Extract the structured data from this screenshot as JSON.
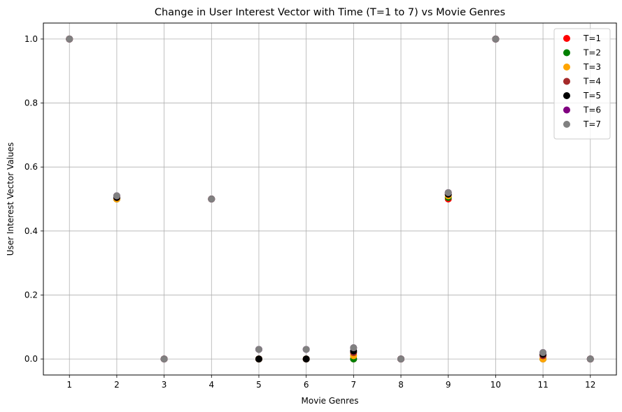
{
  "chart_data": {
    "type": "scatter",
    "title": "Change in User Interest Vector with Time (T=1 to 7) vs Movie Genres",
    "xlabel": "Movie Genres",
    "ylabel": "User Interest Vector Values",
    "x": [
      1,
      2,
      3,
      4,
      5,
      6,
      7,
      8,
      9,
      10,
      11,
      12
    ],
    "xlim": [
      0.45,
      12.55
    ],
    "ylim": [
      -0.05,
      1.05
    ],
    "x_ticks": [
      "1",
      "2",
      "3",
      "4",
      "5",
      "6",
      "7",
      "8",
      "9",
      "10",
      "11",
      "12"
    ],
    "y_ticks": [
      "0.0",
      "0.2",
      "0.4",
      "0.6",
      "0.8",
      "1.0"
    ],
    "grid": true,
    "legend_position": "top-right",
    "series": [
      {
        "name": "T=1",
        "color": "#ff0000",
        "values": [
          1.0,
          0.5,
          0.0,
          0.5,
          0.0,
          0.0,
          0.0,
          0.0,
          0.5,
          1.0,
          0.0,
          0.0
        ]
      },
      {
        "name": "T=2",
        "color": "#008000",
        "values": [
          1.0,
          0.5,
          0.0,
          0.5,
          0.0,
          0.0,
          0.0,
          0.0,
          0.505,
          1.0,
          0.0,
          0.0
        ]
      },
      {
        "name": "T=3",
        "color": "#ffa500",
        "values": [
          1.0,
          0.5,
          0.0,
          0.5,
          0.0,
          0.0,
          0.01,
          0.0,
          0.51,
          1.0,
          0.0,
          0.0
        ]
      },
      {
        "name": "T=4",
        "color": "#a52a2a",
        "values": [
          1.0,
          0.505,
          0.0,
          0.5,
          0.0,
          0.0,
          0.02,
          0.0,
          0.515,
          1.0,
          0.01,
          0.0
        ]
      },
      {
        "name": "T=5",
        "color": "#000000",
        "values": [
          1.0,
          0.505,
          0.0,
          0.5,
          0.0,
          0.0,
          0.025,
          0.0,
          0.515,
          1.0,
          0.015,
          0.0
        ]
      },
      {
        "name": "T=6",
        "color": "#800080",
        "values": [
          1.0,
          0.51,
          0.0,
          0.5,
          0.03,
          0.03,
          0.035,
          0.0,
          0.52,
          1.0,
          0.02,
          0.0
        ]
      },
      {
        "name": "T=7",
        "color": "#808080",
        "values": [
          1.0,
          0.51,
          0.0,
          0.5,
          0.03,
          0.03,
          0.035,
          0.0,
          0.52,
          1.0,
          0.02,
          0.0
        ]
      }
    ]
  }
}
